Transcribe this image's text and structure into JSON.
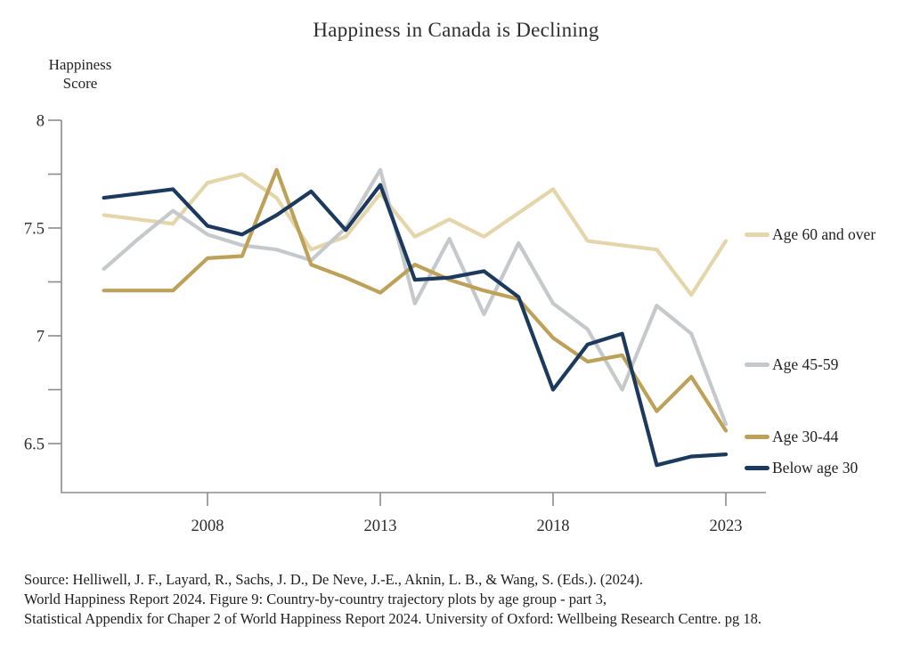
{
  "title": "Happiness in Canada is Declining",
  "y_axis_label": {
    "line1": "Happiness",
    "line2": "Score"
  },
  "source": {
    "line1": "Source: Helliwell, J. F., Layard, R., Sachs, J. D., De Neve, J.-E., Aknin, L. B., & Wang, S. (Eds.). (2024).",
    "line2": "World Happiness Report 2024. Figure 9: Country-by-country trajectory plots by age group - part 3,",
    "line3": "Statistical Appendix for Chaper 2 of World Happiness Report 2024. University of Oxford: Wellbeing Research Centre. pg 18."
  },
  "chart_data": {
    "type": "line",
    "title": "Happiness in Canada is Declining",
    "xlabel": "",
    "ylabel": "Happiness Score",
    "x": [
      2005,
      2006,
      2007,
      2008,
      2009,
      2010,
      2011,
      2012,
      2013,
      2014,
      2015,
      2016,
      2017,
      2018,
      2019,
      2020,
      2021,
      2022,
      2023
    ],
    "xticks": [
      2008,
      2013,
      2018,
      2023
    ],
    "yticks_labeled": [
      8,
      7.5,
      7,
      6.5
    ],
    "yticks_all": [
      8,
      7.75,
      7.5,
      7.25,
      7,
      6.75,
      6.5
    ],
    "ylim": [
      6.27,
      8
    ],
    "xlim": [
      2004.7,
      2024.1
    ],
    "grid": false,
    "legend_position": "right",
    "axes": {
      "color": "#8c8c8c"
    },
    "series": [
      {
        "id": "age-60-plus",
        "name": "Age 60 and over",
        "color": "#e5d5ab",
        "values": [
          7.56,
          7.54,
          7.52,
          7.71,
          7.75,
          7.64,
          7.4,
          7.46,
          7.66,
          7.46,
          7.54,
          7.46,
          7.57,
          7.68,
          7.44,
          7.42,
          7.4,
          7.19,
          7.44
        ]
      },
      {
        "id": "age-45-59",
        "name": "Age 45-59",
        "color": "#c6c9cc",
        "values": [
          7.31,
          7.45,
          7.58,
          7.47,
          7.42,
          7.4,
          7.35,
          7.5,
          7.77,
          7.15,
          7.45,
          7.1,
          7.43,
          7.15,
          7.03,
          6.75,
          7.14,
          7.01,
          6.59
        ]
      },
      {
        "id": "age-30-44",
        "name": "Age 30-44",
        "color": "#bea158",
        "values": [
          7.21,
          7.21,
          7.21,
          7.36,
          7.37,
          7.77,
          7.33,
          7.27,
          7.2,
          7.33,
          7.26,
          7.21,
          7.17,
          6.99,
          6.88,
          6.91,
          6.65,
          6.81,
          6.56
        ]
      },
      {
        "id": "below-age-30",
        "name": "Below age 30",
        "color": "#1c3a5e",
        "values": [
          7.64,
          7.66,
          7.68,
          7.51,
          7.47,
          7.56,
          7.67,
          7.49,
          7.7,
          7.26,
          7.27,
          7.3,
          7.18,
          6.75,
          6.96,
          7.01,
          6.4,
          6.44,
          6.45
        ]
      }
    ]
  }
}
